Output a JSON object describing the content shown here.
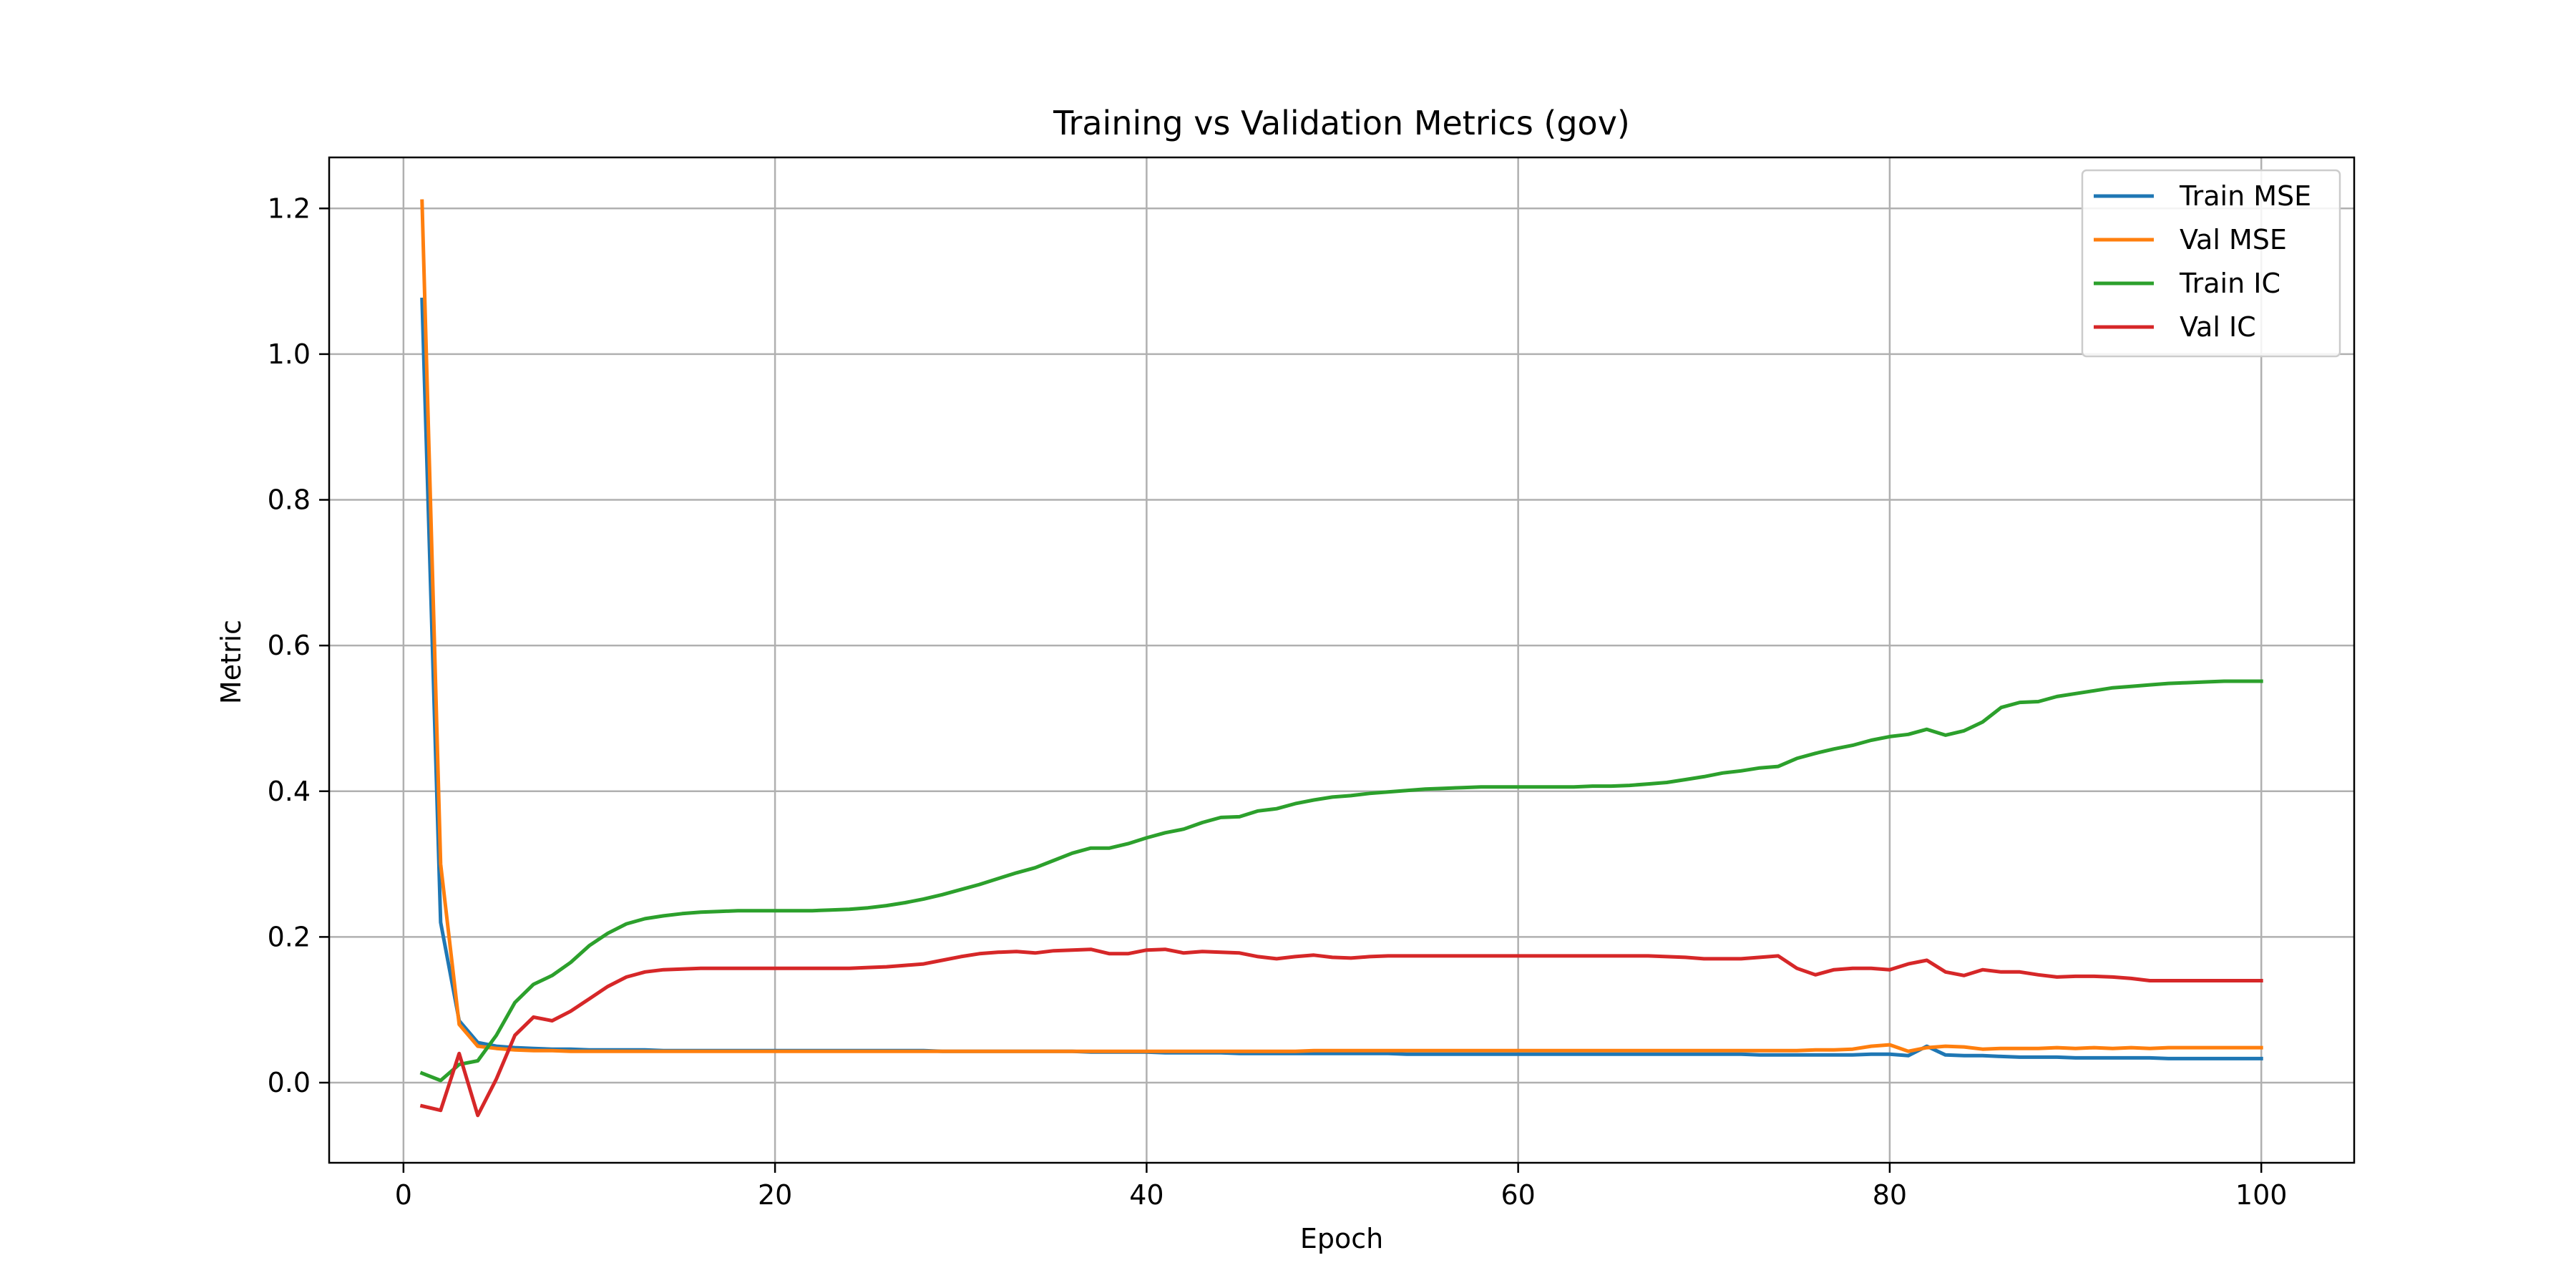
{
  "chart_data": {
    "type": "line",
    "title": "Training vs Validation Metrics (gov)",
    "xlabel": "Epoch",
    "ylabel": "Metric",
    "xlim": [
      -4,
      105
    ],
    "ylim": [
      -0.11,
      1.27
    ],
    "xticks": [
      0,
      20,
      40,
      60,
      80,
      100
    ],
    "yticks": [
      0.0,
      0.2,
      0.4,
      0.6,
      0.8,
      1.0,
      1.2
    ],
    "xtick_labels": [
      "0",
      "20",
      "40",
      "60",
      "80",
      "100"
    ],
    "ytick_labels": [
      "0.0",
      "0.2",
      "0.4",
      "0.6",
      "0.8",
      "1.0",
      "1.2"
    ],
    "grid": true,
    "legend_position": "top-right",
    "x": [
      1,
      2,
      3,
      4,
      5,
      6,
      7,
      8,
      9,
      10,
      11,
      12,
      13,
      14,
      15,
      16,
      17,
      18,
      19,
      20,
      21,
      22,
      23,
      24,
      25,
      26,
      27,
      28,
      29,
      30,
      31,
      32,
      33,
      34,
      35,
      36,
      37,
      38,
      39,
      40,
      41,
      42,
      43,
      44,
      45,
      46,
      47,
      48,
      49,
      50,
      51,
      52,
      53,
      54,
      55,
      56,
      57,
      58,
      59,
      60,
      61,
      62,
      63,
      64,
      65,
      66,
      67,
      68,
      69,
      70,
      71,
      72,
      73,
      74,
      75,
      76,
      77,
      78,
      79,
      80,
      81,
      82,
      83,
      84,
      85,
      86,
      87,
      88,
      89,
      90,
      91,
      92,
      93,
      94,
      95,
      96,
      97,
      98,
      99,
      100
    ],
    "series": [
      {
        "name": "Train MSE",
        "color": "#1f77b4",
        "values": [
          1.075,
          0.22,
          0.085,
          0.055,
          0.05,
          0.048,
          0.047,
          0.046,
          0.046,
          0.045,
          0.045,
          0.045,
          0.045,
          0.044,
          0.044,
          0.044,
          0.044,
          0.044,
          0.044,
          0.044,
          0.044,
          0.044,
          0.044,
          0.044,
          0.044,
          0.044,
          0.044,
          0.044,
          0.043,
          0.043,
          0.043,
          0.043,
          0.043,
          0.043,
          0.043,
          0.043,
          0.042,
          0.042,
          0.042,
          0.042,
          0.041,
          0.041,
          0.041,
          0.041,
          0.04,
          0.04,
          0.04,
          0.04,
          0.04,
          0.04,
          0.04,
          0.04,
          0.04,
          0.039,
          0.039,
          0.039,
          0.039,
          0.039,
          0.039,
          0.039,
          0.039,
          0.039,
          0.039,
          0.039,
          0.039,
          0.039,
          0.039,
          0.039,
          0.039,
          0.039,
          0.039,
          0.039,
          0.038,
          0.038,
          0.038,
          0.038,
          0.038,
          0.038,
          0.039,
          0.039,
          0.037,
          0.05,
          0.038,
          0.037,
          0.037,
          0.036,
          0.035,
          0.035,
          0.035,
          0.034,
          0.034,
          0.034,
          0.034,
          0.034,
          0.033,
          0.033,
          0.033,
          0.033,
          0.033,
          0.033
        ]
      },
      {
        "name": "Val MSE",
        "color": "#ff7f0e",
        "values": [
          1.21,
          0.3,
          0.08,
          0.05,
          0.047,
          0.045,
          0.044,
          0.044,
          0.043,
          0.043,
          0.043,
          0.043,
          0.043,
          0.043,
          0.043,
          0.043,
          0.043,
          0.043,
          0.043,
          0.043,
          0.043,
          0.043,
          0.043,
          0.043,
          0.043,
          0.043,
          0.043,
          0.043,
          0.043,
          0.043,
          0.043,
          0.043,
          0.043,
          0.043,
          0.043,
          0.043,
          0.043,
          0.043,
          0.043,
          0.043,
          0.043,
          0.043,
          0.043,
          0.043,
          0.043,
          0.043,
          0.043,
          0.043,
          0.044,
          0.044,
          0.044,
          0.044,
          0.044,
          0.044,
          0.044,
          0.044,
          0.044,
          0.044,
          0.044,
          0.044,
          0.044,
          0.044,
          0.044,
          0.044,
          0.044,
          0.044,
          0.044,
          0.044,
          0.044,
          0.044,
          0.044,
          0.044,
          0.044,
          0.044,
          0.044,
          0.045,
          0.045,
          0.046,
          0.05,
          0.052,
          0.043,
          0.048,
          0.05,
          0.049,
          0.046,
          0.047,
          0.047,
          0.047,
          0.048,
          0.047,
          0.048,
          0.047,
          0.048,
          0.047,
          0.048,
          0.048,
          0.048,
          0.048,
          0.048,
          0.048
        ]
      },
      {
        "name": "Train IC",
        "color": "#2ca02c",
        "values": [
          0.013,
          0.003,
          0.025,
          0.03,
          0.065,
          0.11,
          0.135,
          0.147,
          0.165,
          0.188,
          0.205,
          0.218,
          0.225,
          0.229,
          0.232,
          0.234,
          0.235,
          0.236,
          0.236,
          0.236,
          0.236,
          0.236,
          0.237,
          0.238,
          0.24,
          0.243,
          0.247,
          0.252,
          0.258,
          0.265,
          0.272,
          0.28,
          0.288,
          0.295,
          0.305,
          0.315,
          0.322,
          0.322,
          0.328,
          0.336,
          0.343,
          0.348,
          0.357,
          0.364,
          0.365,
          0.373,
          0.376,
          0.383,
          0.388,
          0.392,
          0.394,
          0.397,
          0.399,
          0.401,
          0.403,
          0.404,
          0.405,
          0.406,
          0.406,
          0.406,
          0.406,
          0.406,
          0.406,
          0.407,
          0.407,
          0.408,
          0.41,
          0.412,
          0.416,
          0.42,
          0.425,
          0.428,
          0.432,
          0.434,
          0.445,
          0.452,
          0.458,
          0.463,
          0.47,
          0.475,
          0.478,
          0.485,
          0.477,
          0.483,
          0.495,
          0.515,
          0.522,
          0.523,
          0.53,
          0.534,
          0.538,
          0.542,
          0.544,
          0.546,
          0.548,
          0.549,
          0.55,
          0.551,
          0.551,
          0.551
        ]
      },
      {
        "name": "Val IC",
        "color": "#d62728",
        "values": [
          -0.032,
          -0.038,
          0.04,
          -0.045,
          0.005,
          0.065,
          0.09,
          0.085,
          0.098,
          0.115,
          0.132,
          0.145,
          0.152,
          0.155,
          0.156,
          0.157,
          0.157,
          0.157,
          0.157,
          0.157,
          0.157,
          0.157,
          0.157,
          0.157,
          0.158,
          0.159,
          0.161,
          0.163,
          0.168,
          0.173,
          0.177,
          0.179,
          0.18,
          0.178,
          0.181,
          0.182,
          0.183,
          0.177,
          0.177,
          0.182,
          0.183,
          0.178,
          0.18,
          0.179,
          0.178,
          0.173,
          0.17,
          0.173,
          0.175,
          0.172,
          0.171,
          0.173,
          0.174,
          0.174,
          0.174,
          0.174,
          0.174,
          0.174,
          0.174,
          0.174,
          0.174,
          0.174,
          0.174,
          0.174,
          0.174,
          0.174,
          0.174,
          0.173,
          0.172,
          0.17,
          0.17,
          0.17,
          0.172,
          0.174,
          0.157,
          0.148,
          0.155,
          0.157,
          0.157,
          0.155,
          0.163,
          0.168,
          0.152,
          0.147,
          0.155,
          0.152,
          0.152,
          0.148,
          0.145,
          0.146,
          0.146,
          0.145,
          0.143,
          0.14,
          0.14,
          0.14,
          0.14,
          0.14,
          0.14,
          0.14
        ]
      }
    ]
  }
}
